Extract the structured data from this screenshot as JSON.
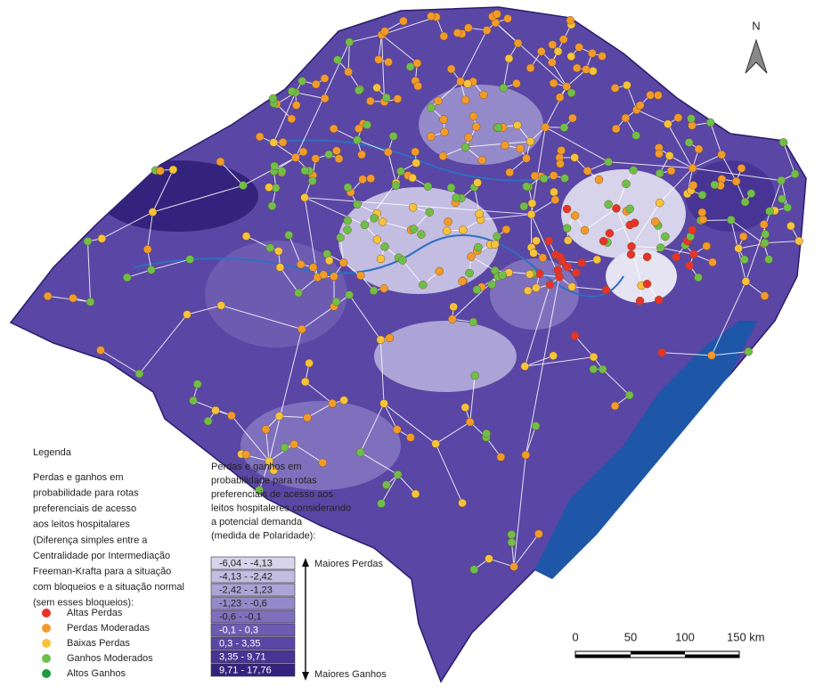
{
  "north": "N",
  "legend": {
    "title": "Legenda",
    "points_description": [
      "Perdas e ganhos em",
      "probabilidade para rotas",
      "preferenciais de acesso",
      "aos leitos hospitalares",
      "(Diferença simples entre a",
      "Centralidade por Intermediação",
      "Freeman-Krafta para a situação",
      "com bloqueios e a situação normal",
      "(sem esses bloqueios):"
    ],
    "points": [
      {
        "label": "Altas Perdas",
        "color": "#e8322a"
      },
      {
        "label": "Perdas Moderadas",
        "color": "#f39a2b"
      },
      {
        "label": "Baixas Perdas",
        "color": "#f7c23c"
      },
      {
        "label": "Ganhos Moderados",
        "color": "#6cc04a"
      },
      {
        "label": "Altos Ganhos",
        "color": "#1f9a3c"
      }
    ],
    "polarity_description": [
      "Perdas e ganhos em",
      "probabilidade para rotas",
      "preferenciais de acesso aos",
      "leitos hospitaleres considerando",
      "a potencial demanda",
      "(medida de Polaridade):"
    ],
    "classes": [
      {
        "label": "-6,04 - -4,13",
        "color": "#d6d3ea"
      },
      {
        "label": "-4,13 - -2,42",
        "color": "#c3bde2"
      },
      {
        "label": "-2,42 - -1,23",
        "color": "#aca3d6"
      },
      {
        "label": "-1,23 - -0,6",
        "color": "#958ac9"
      },
      {
        "label": "-0,6 - -0,1",
        "color": "#7f70bd"
      },
      {
        "label": "-0,1 - 0,3",
        "color": "#6d5bb2"
      },
      {
        "label": "0,3 - 3,35",
        "color": "#5a46a4"
      },
      {
        "label": "3,35 - 9,71",
        "color": "#473494"
      },
      {
        "label": "9,71 - 17,76",
        "color": "#33237c"
      }
    ],
    "top_arrow": "Maiores Perdas",
    "bottom_arrow": "Maiores Ganhos"
  },
  "scale_bar": [
    "0",
    "50",
    "100",
    "150 km"
  ]
}
